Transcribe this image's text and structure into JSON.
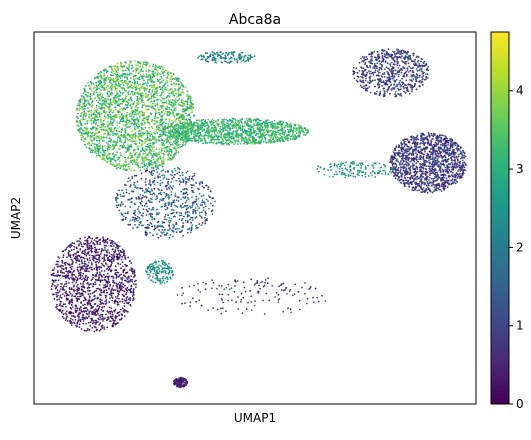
{
  "chart_data": {
    "type": "scatter",
    "title": "Abca8a",
    "xlabel": "UMAP1",
    "ylabel": "UMAP2",
    "x_ticks": [],
    "y_ticks": [],
    "colorbar": {
      "colormap": "viridis",
      "range": [
        0,
        4.75
      ],
      "ticks": [
        0,
        1,
        2,
        3,
        4
      ],
      "tick_labels": [
        "0",
        "1",
        "2",
        "3",
        "4"
      ],
      "stops": [
        "#440154",
        "#482878",
        "#3e4989",
        "#31688e",
        "#26828e",
        "#1f9e89",
        "#35b779",
        "#6ece58",
        "#b5de2b",
        "#fde725"
      ]
    },
    "grid": false,
    "legend": "none",
    "clusters": [
      {
        "name": "large upper-left",
        "x": [
          -3.2,
          1.9
        ],
        "y": [
          1.2,
          5.8
        ],
        "expression": [
          2.5,
          4.3
        ],
        "density": "very high"
      },
      {
        "name": "horizontal streak",
        "x": [
          0.5,
          6.8
        ],
        "y": [
          2.3,
          3.4
        ],
        "expression": [
          2.6,
          3.8
        ],
        "density": "high"
      },
      {
        "name": "lower-left",
        "x": [
          -4.3,
          -0.6
        ],
        "y": [
          -5.5,
          -1.5
        ],
        "expression": [
          0.0,
          0.9
        ],
        "density": "high"
      },
      {
        "name": "middle bridge",
        "x": [
          -1.5,
          2.8
        ],
        "y": [
          -1.6,
          1.4
        ],
        "expression": [
          0.3,
          2.6
        ],
        "density": "medium"
      },
      {
        "name": "top-right ring",
        "x": [
          8.7,
          12.0
        ],
        "y": [
          4.3,
          6.3
        ],
        "expression": [
          0.3,
          1.6
        ],
        "density": "medium"
      },
      {
        "name": "right ring",
        "x": [
          10.3,
          13.6
        ],
        "y": [
          0.3,
          2.8
        ],
        "expression": [
          0.2,
          1.6
        ],
        "density": "high"
      },
      {
        "name": "right streak",
        "x": [
          7.0,
          10.5
        ],
        "y": [
          0.9,
          1.6
        ],
        "expression": [
          1.8,
          3.2
        ],
        "density": "low"
      },
      {
        "name": "lower streak",
        "x": [
          1.0,
          7.7
        ],
        "y": [
          -4.8,
          -3.2
        ],
        "expression": [
          0.4,
          1.5
        ],
        "density": "low"
      },
      {
        "name": "small teal",
        "x": [
          -0.2,
          1.0
        ],
        "y": [
          -3.5,
          -2.5
        ],
        "expression": [
          2.0,
          3.0
        ],
        "density": "low"
      },
      {
        "name": "bottom small",
        "x": [
          1.0,
          1.6
        ],
        "y": [
          -7.8,
          -7.4
        ],
        "expression": [
          0.0,
          0.8
        ],
        "density": "low"
      },
      {
        "name": "top small",
        "x": [
          2.0,
          4.5
        ],
        "y": [
          5.7,
          6.2
        ],
        "expression": [
          1.5,
          2.8
        ],
        "density": "low"
      }
    ]
  }
}
